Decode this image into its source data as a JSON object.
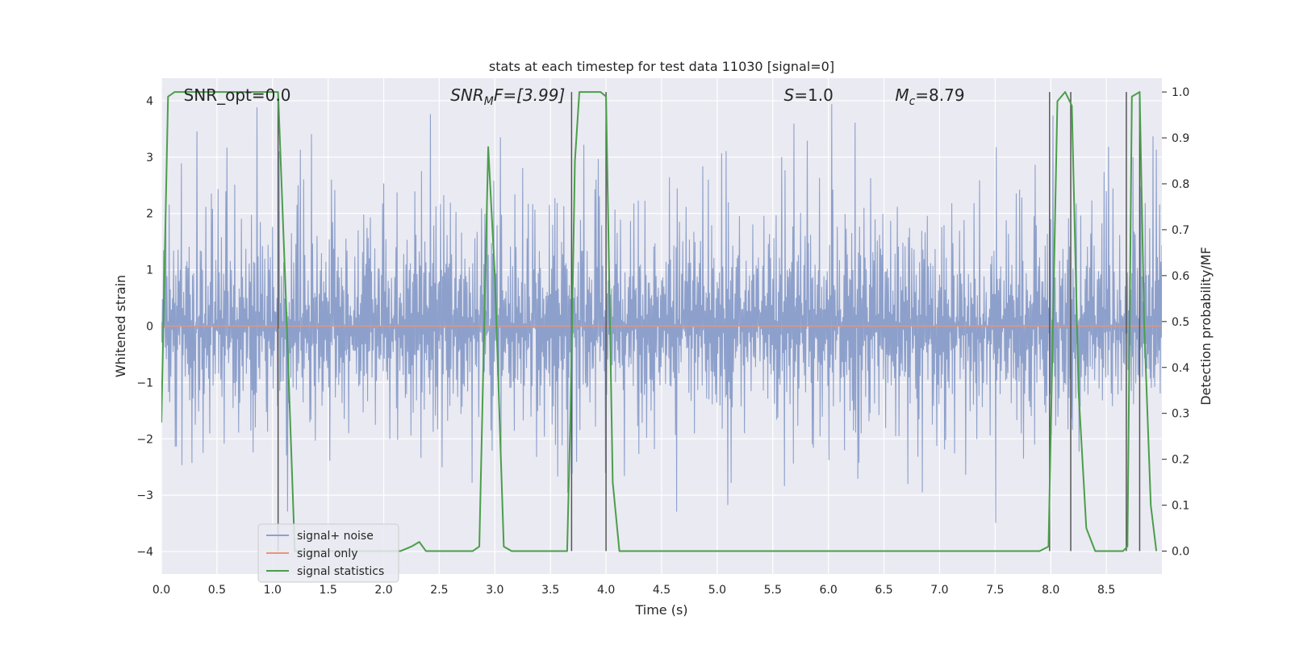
{
  "chart_data": {
    "type": "line",
    "title": "stats at each timestep for test data 11030 [signal=0]",
    "xlabel": "Time (s)",
    "ylabel": "Whitened strain",
    "ylabel_right": "Detection probability/MF",
    "xlim": [
      0.0,
      9.0
    ],
    "ylim": [
      -4.4,
      4.4
    ],
    "ylim_right": [
      -0.05,
      1.03
    ],
    "x_ticks": [
      "0.0",
      "0.5",
      "1.0",
      "1.5",
      "2.0",
      "2.5",
      "3.0",
      "3.5",
      "4.0",
      "4.5",
      "5.0",
      "5.5",
      "6.0",
      "6.5",
      "7.0",
      "7.5",
      "8.0",
      "8.5"
    ],
    "x_tick_values": [
      0,
      0.5,
      1,
      1.5,
      2,
      2.5,
      3,
      3.5,
      4,
      4.5,
      5,
      5.5,
      6,
      6.5,
      7,
      7.5,
      8,
      8.5
    ],
    "y_ticks": [
      "−4",
      "−3",
      "−2",
      "−1",
      "0",
      "1",
      "2",
      "3",
      "4"
    ],
    "y_tick_values": [
      -4,
      -3,
      -2,
      -1,
      0,
      1,
      2,
      3,
      4
    ],
    "y_ticks_right": [
      "0.0",
      "0.1",
      "0.2",
      "0.3",
      "0.4",
      "0.5",
      "0.6",
      "0.7",
      "0.8",
      "0.9",
      "1.0"
    ],
    "y_tick_values_right": [
      0,
      0.1,
      0.2,
      0.3,
      0.4,
      0.5,
      0.6,
      0.7,
      0.8,
      0.9,
      1.0
    ],
    "annotations": [
      {
        "text": "SNR_opt=0.0",
        "x": 0.2,
        "y": 4.1
      },
      {
        "text": "SNR",
        "sub": "M",
        "tail": "F=[3.99]",
        "italic": true,
        "x": 2.6,
        "y": 4.1
      },
      {
        "text": "S",
        "tail": "=1.0",
        "italic": true,
        "x": 5.6,
        "y": 4.1
      },
      {
        "text": "M",
        "sub": "c",
        "tail": "=8.79",
        "italic": true,
        "x": 6.6,
        "y": 4.1
      }
    ],
    "legend": {
      "placement": "lower-left",
      "entries": [
        "signal+ noise",
        "signal only",
        "signal statistics"
      ]
    },
    "series": [
      {
        "name": "signal+ noise",
        "color": "#8da0cb",
        "axis": "left",
        "style": "noise",
        "x_range": [
          0.0,
          9.0
        ],
        "envelope_typical": 2.0,
        "envelope_peak": 4.0,
        "samples": 1800
      },
      {
        "name": "signal only",
        "color": "#e8967a",
        "axis": "left",
        "x": [
          0.0,
          9.0
        ],
        "y": [
          0.0,
          0.0
        ]
      },
      {
        "name": "signal statistics",
        "color": "#4a9e4a",
        "axis": "right",
        "x": [
          0.0,
          0.06,
          0.12,
          0.5,
          1.0,
          1.05,
          1.12,
          1.2,
          2.0,
          2.15,
          2.25,
          2.32,
          2.38,
          2.8,
          2.86,
          2.94,
          3.0,
          3.08,
          3.15,
          3.65,
          3.68,
          3.72,
          3.76,
          3.95,
          4.0,
          4.06,
          4.12,
          6.9,
          7.0,
          7.9,
          7.98,
          8.06,
          8.13,
          8.19,
          8.25,
          8.32,
          8.4,
          8.65,
          8.69,
          8.73,
          8.8,
          8.84,
          8.9,
          8.95
        ],
        "y": [
          0.28,
          0.99,
          1.0,
          1.0,
          1.0,
          1.0,
          0.55,
          0.0,
          0.0,
          0.0,
          0.01,
          0.02,
          0.0,
          0.0,
          0.01,
          0.88,
          0.6,
          0.01,
          0.0,
          0.0,
          0.3,
          0.85,
          1.0,
          1.0,
          0.99,
          0.15,
          0.0,
          0.0,
          0.0,
          0.0,
          0.01,
          0.98,
          1.0,
          0.97,
          0.35,
          0.05,
          0.0,
          0.0,
          0.01,
          0.99,
          1.0,
          0.5,
          0.1,
          0.0
        ]
      }
    ],
    "vertical_lines": {
      "color": "#555555",
      "x": [
        1.05,
        3.69,
        4.0,
        7.99,
        8.18,
        8.68,
        8.8
      ]
    },
    "grid": true,
    "colors": {
      "plot_background": "#eaeaf2",
      "grid": "#ffffff"
    }
  }
}
